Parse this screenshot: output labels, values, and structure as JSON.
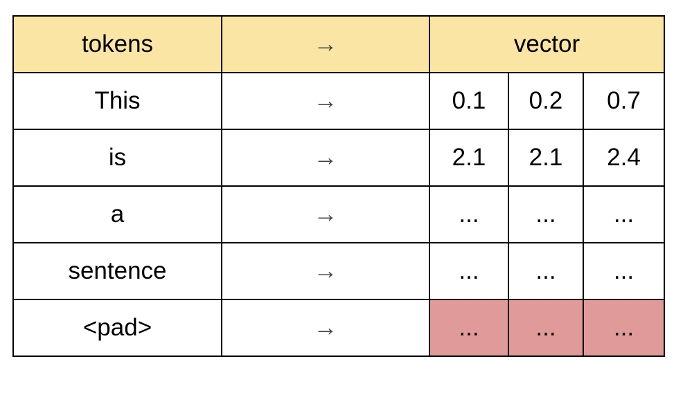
{
  "colors": {
    "header_bg": "#fbe5a4",
    "pad_cell_bg": "#e09a9a",
    "border": "#000000"
  },
  "header": {
    "tokens": "tokens",
    "arrow": "→",
    "vector": "vector"
  },
  "rows": [
    {
      "token": "This",
      "arrow": "→",
      "values": [
        "0.1",
        "0.2",
        "0.7"
      ]
    },
    {
      "token": "is",
      "arrow": "→",
      "values": [
        "2.1",
        "2.1",
        "2.4"
      ]
    },
    {
      "token": "a",
      "arrow": "→",
      "values": [
        "...",
        "...",
        "..."
      ]
    },
    {
      "token": "sentence",
      "arrow": "→",
      "values": [
        "...",
        "...",
        "..."
      ]
    },
    {
      "token": "<pad>",
      "arrow": "→",
      "values": [
        "...",
        "...",
        "..."
      ],
      "highlight": "pad_cell_bg"
    }
  ]
}
